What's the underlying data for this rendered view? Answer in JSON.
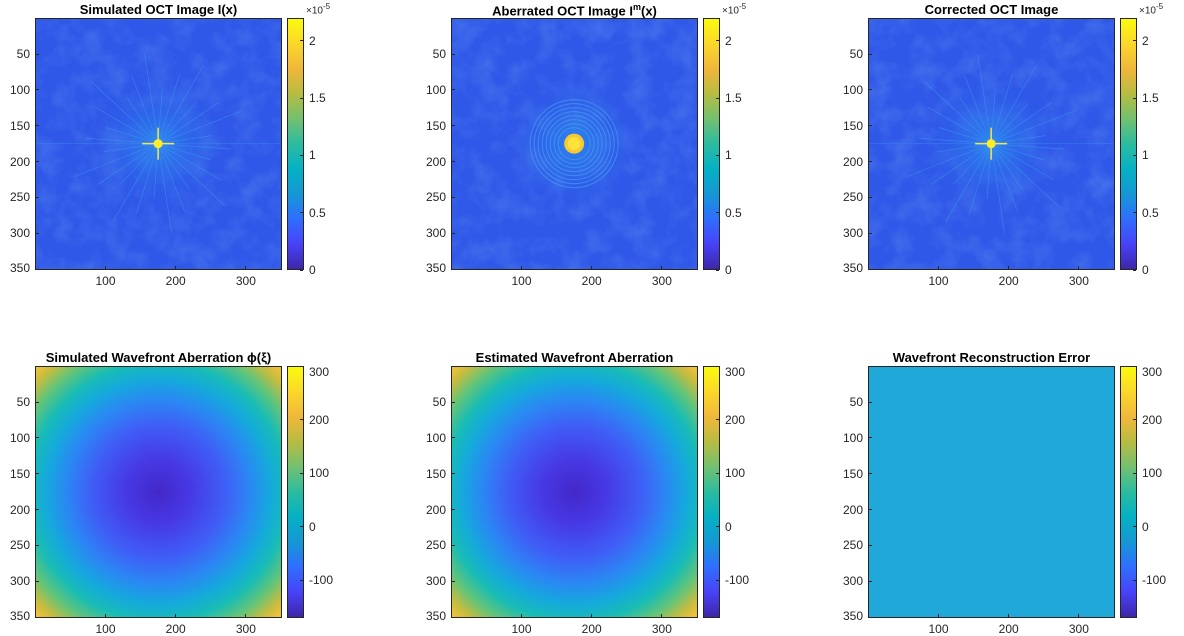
{
  "chart_data": [
    {
      "type": "heatmap",
      "title": "Simulated OCT Image I(x)",
      "image": "oct-psf-sharp",
      "xticks": [
        "100",
        "200",
        "300"
      ],
      "xtick_values": [
        100,
        200,
        300
      ],
      "yticks": [
        "50",
        "100",
        "150",
        "200",
        "250",
        "300",
        "350"
      ],
      "ytick_values": [
        50,
        100,
        150,
        200,
        250,
        300,
        350
      ],
      "xlim": [
        1,
        350
      ],
      "ylim": [
        1,
        350
      ],
      "colorbar": {
        "ticks": [
          "0",
          "0.5",
          "1",
          "1.5",
          "2"
        ],
        "tick_values": [
          0,
          0.5,
          1,
          1.5,
          2
        ],
        "range": [
          0,
          2.2
        ],
        "exponent": "-5"
      },
      "peak": {
        "x": 175,
        "y": 175
      }
    },
    {
      "type": "heatmap",
      "title": "Aberrated OCT Image I",
      "title_sup": "m",
      "title_suffix": "(x)",
      "image": "oct-psf-aberrated",
      "xticks": [
        "100",
        "200",
        "300"
      ],
      "xtick_values": [
        100,
        200,
        300
      ],
      "yticks": [
        "50",
        "100",
        "150",
        "200",
        "250",
        "300",
        "350"
      ],
      "ytick_values": [
        50,
        100,
        150,
        200,
        250,
        300,
        350
      ],
      "xlim": [
        1,
        350
      ],
      "ylim": [
        1,
        350
      ],
      "colorbar": {
        "ticks": [
          "0",
          "0.5",
          "1",
          "1.5",
          "2"
        ],
        "tick_values": [
          0,
          0.5,
          1,
          1.5,
          2
        ],
        "range": [
          0,
          2.2
        ],
        "exponent": "-5"
      },
      "peak": {
        "x": 175,
        "y": 175
      }
    },
    {
      "type": "heatmap",
      "title": "Corrected OCT Image",
      "image": "oct-psf-sharp",
      "xticks": [
        "100",
        "200",
        "300"
      ],
      "xtick_values": [
        100,
        200,
        300
      ],
      "yticks": [
        "50",
        "100",
        "150",
        "200",
        "250",
        "300",
        "350"
      ],
      "ytick_values": [
        50,
        100,
        150,
        200,
        250,
        300,
        350
      ],
      "xlim": [
        1,
        350
      ],
      "ylim": [
        1,
        350
      ],
      "colorbar": {
        "ticks": [
          "0",
          "0.5",
          "1",
          "1.5",
          "2"
        ],
        "tick_values": [
          0,
          0.5,
          1,
          1.5,
          2
        ],
        "range": [
          0,
          2.2
        ],
        "exponent": "-5"
      },
      "peak": {
        "x": 175,
        "y": 175
      }
    },
    {
      "type": "heatmap",
      "title": "Simulated Wavefront Aberration ϕ(ξ)",
      "image": "radial-wavefront",
      "xticks": [
        "100",
        "200",
        "300"
      ],
      "xtick_values": [
        100,
        200,
        300
      ],
      "yticks": [
        "50",
        "100",
        "150",
        "200",
        "250",
        "300",
        "350"
      ],
      "ytick_values": [
        50,
        100,
        150,
        200,
        250,
        300,
        350
      ],
      "xlim": [
        1,
        350
      ],
      "ylim": [
        1,
        350
      ],
      "colorbar": {
        "ticks": [
          "-100",
          "0",
          "100",
          "200",
          "300"
        ],
        "tick_values": [
          -100,
          0,
          100,
          200,
          300
        ],
        "range": [
          -170,
          300
        ]
      },
      "peak": {
        "x": 175,
        "y": 175
      }
    },
    {
      "type": "heatmap",
      "title": "Estimated Wavefront Aberration",
      "image": "radial-wavefront",
      "xticks": [
        "100",
        "200",
        "300"
      ],
      "xtick_values": [
        100,
        200,
        300
      ],
      "yticks": [
        "50",
        "100",
        "150",
        "200",
        "250",
        "300",
        "350"
      ],
      "ytick_values": [
        50,
        100,
        150,
        200,
        250,
        300,
        350
      ],
      "xlim": [
        1,
        350
      ],
      "ylim": [
        1,
        350
      ],
      "colorbar": {
        "ticks": [
          "-100",
          "0",
          "100",
          "200",
          "300"
        ],
        "tick_values": [
          -100,
          0,
          100,
          200,
          300
        ],
        "range": [
          -170,
          300
        ]
      },
      "peak": {
        "x": 175,
        "y": 175
      }
    },
    {
      "type": "heatmap",
      "title": "Wavefront Reconstruction Error",
      "image": "uniform",
      "uniform_value": 0,
      "xticks": [
        "100",
        "200",
        "300"
      ],
      "xtick_values": [
        100,
        200,
        300
      ],
      "yticks": [
        "50",
        "100",
        "150",
        "200",
        "250",
        "300",
        "350"
      ],
      "ytick_values": [
        50,
        100,
        150,
        200,
        250,
        300,
        350
      ],
      "xlim": [
        1,
        350
      ],
      "ylim": [
        1,
        350
      ],
      "colorbar": {
        "ticks": [
          "-100",
          "0",
          "100",
          "200",
          "300"
        ],
        "tick_values": [
          -100,
          0,
          100,
          200,
          300
        ],
        "range": [
          -170,
          300
        ]
      },
      "peak": {
        "x": 175,
        "y": 175
      }
    }
  ]
}
